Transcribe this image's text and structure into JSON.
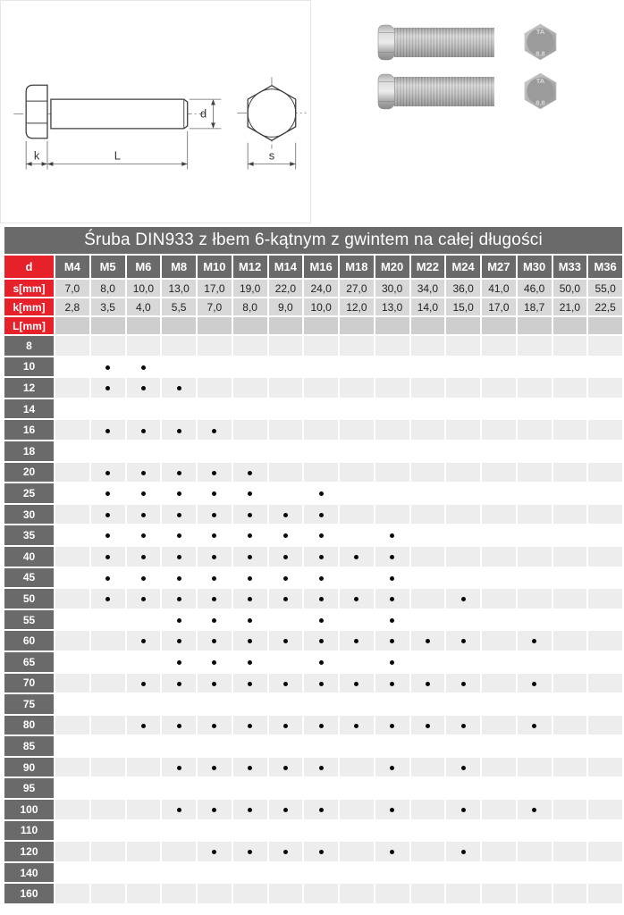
{
  "drawing": {
    "d_label": "d",
    "k_label": "k",
    "l_label": "L",
    "s_label": "s"
  },
  "photos": {
    "head_marking_top": "TA",
    "head_marking_bottom": "8.8"
  },
  "table": {
    "title": "Śruba DIN933 z łbem 6-kątnym z gwintem na całej długości",
    "d_header_label": "d",
    "s_row_label": "s[mm]",
    "k_row_label": "k[mm]",
    "l_row_label": "L[mm]",
    "diameters": [
      "M4",
      "M5",
      "M6",
      "M8",
      "M10",
      "M12",
      "M14",
      "M16",
      "M18",
      "M20",
      "M22",
      "M24",
      "M27",
      "M30",
      "M33",
      "M36"
    ],
    "s_values": [
      "7,0",
      "8,0",
      "10,0",
      "13,0",
      "17,0",
      "19,0",
      "22,0",
      "24,0",
      "27,0",
      "30,0",
      "34,0",
      "36,0",
      "41,0",
      "46,0",
      "50,0",
      "55,0"
    ],
    "k_values": [
      "2,8",
      "3,5",
      "4,0",
      "5,5",
      "7,0",
      "8,0",
      "9,0",
      "10,0",
      "12,0",
      "13,0",
      "14,0",
      "15,0",
      "17,0",
      "18,7",
      "21,0",
      "22,5"
    ],
    "lengths": [
      {
        "l": "8",
        "available": []
      },
      {
        "l": "10",
        "available": [
          "M5",
          "M6"
        ]
      },
      {
        "l": "12",
        "available": [
          "M5",
          "M6",
          "M8"
        ]
      },
      {
        "l": "14",
        "available": []
      },
      {
        "l": "16",
        "available": [
          "M5",
          "M6",
          "M8",
          "M10"
        ]
      },
      {
        "l": "18",
        "available": []
      },
      {
        "l": "20",
        "available": [
          "M5",
          "M6",
          "M8",
          "M10",
          "M12"
        ]
      },
      {
        "l": "25",
        "available": [
          "M5",
          "M6",
          "M8",
          "M10",
          "M12",
          "M16"
        ]
      },
      {
        "l": "30",
        "available": [
          "M5",
          "M6",
          "M8",
          "M10",
          "M12",
          "M14",
          "M16"
        ]
      },
      {
        "l": "35",
        "available": [
          "M5",
          "M6",
          "M8",
          "M10",
          "M12",
          "M14",
          "M16",
          "M20"
        ]
      },
      {
        "l": "40",
        "available": [
          "M5",
          "M6",
          "M8",
          "M10",
          "M12",
          "M14",
          "M16",
          "M18",
          "M20"
        ]
      },
      {
        "l": "45",
        "available": [
          "M5",
          "M6",
          "M8",
          "M10",
          "M12",
          "M14",
          "M16",
          "M20"
        ]
      },
      {
        "l": "50",
        "available": [
          "M5",
          "M6",
          "M8",
          "M10",
          "M12",
          "M14",
          "M16",
          "M18",
          "M20",
          "M24"
        ]
      },
      {
        "l": "55",
        "available": [
          "M8",
          "M10",
          "M12",
          "M16",
          "M20"
        ]
      },
      {
        "l": "60",
        "available": [
          "M6",
          "M8",
          "M10",
          "M12",
          "M14",
          "M16",
          "M18",
          "M20",
          "M22",
          "M24",
          "M30"
        ]
      },
      {
        "l": "65",
        "available": [
          "M8",
          "M10",
          "M12",
          "M16",
          "M20"
        ]
      },
      {
        "l": "70",
        "available": [
          "M6",
          "M8",
          "M10",
          "M12",
          "M14",
          "M16",
          "M18",
          "M20",
          "M22",
          "M24",
          "M30"
        ]
      },
      {
        "l": "75",
        "available": []
      },
      {
        "l": "80",
        "available": [
          "M6",
          "M8",
          "M10",
          "M12",
          "M14",
          "M16",
          "M18",
          "M20",
          "M22",
          "M24",
          "M30"
        ]
      },
      {
        "l": "85",
        "available": []
      },
      {
        "l": "90",
        "available": [
          "M8",
          "M10",
          "M12",
          "M14",
          "M16",
          "M20",
          "M24"
        ]
      },
      {
        "l": "95",
        "available": []
      },
      {
        "l": "100",
        "available": [
          "M8",
          "M10",
          "M12",
          "M14",
          "M16",
          "M20",
          "M24",
          "M30"
        ]
      },
      {
        "l": "110",
        "available": []
      },
      {
        "l": "120",
        "available": [
          "M10",
          "M12",
          "M14",
          "M16",
          "M20",
          "M24"
        ]
      },
      {
        "l": "140",
        "available": []
      },
      {
        "l": "160",
        "available": []
      }
    ],
    "colors": {
      "red": "#e6212a",
      "header_gray": "#6a6a6a",
      "dim_cell_gray": "#d8d8d8",
      "l_cell_gray": "#cecece",
      "stripe_gray": "#ededed",
      "dot": "#0a0a0a"
    }
  }
}
